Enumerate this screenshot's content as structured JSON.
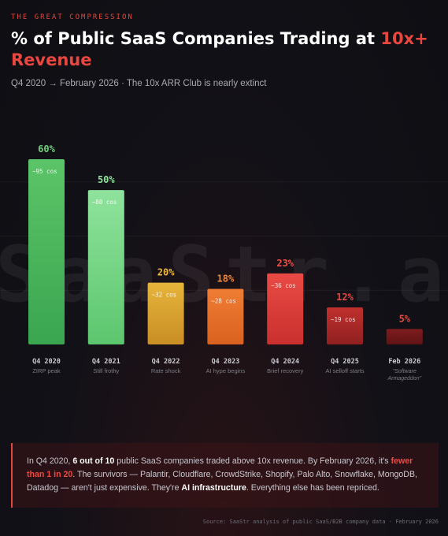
{
  "header": {
    "kicker": "THE GREAT COMPRESSION",
    "title_main": "% of Public SaaS Companies Trading at ",
    "title_accent": "10x+ Revenue",
    "subtitle": "Q4 2020 → February 2026 · The 10x ARR Club is nearly extinct"
  },
  "watermark": "SaaStr.ai",
  "chart_data": {
    "type": "bar",
    "title": "% of Public SaaS Companies Trading at 10x+ Revenue",
    "categories": [
      "Q4 2020",
      "Q4 2021",
      "Q4 2022",
      "Q4 2023",
      "Q4 2024",
      "Q4 2025",
      "Feb 2026"
    ],
    "sublabels": [
      "ZIRP peak",
      "Still frothy",
      "Rate shock",
      "AI hype begins",
      "Brief recovery",
      "AI selloff starts",
      "\"Software Armageddon\""
    ],
    "values": [
      60,
      50,
      20,
      18,
      23,
      12,
      5
    ],
    "value_labels": [
      "60%",
      "50%",
      "20%",
      "18%",
      "23%",
      "12%",
      "5%"
    ],
    "count_labels": [
      "~95 cos",
      "~80 cos",
      "~32 cos",
      "~28 cos",
      "~36 cos",
      "~19 cos",
      ""
    ],
    "ylim": [
      0,
      70
    ],
    "grid": true,
    "colors": {
      "bars_top": [
        "#5cc468",
        "#8fe39c",
        "#e6b43a",
        "#ef7d34",
        "#ea4a44",
        "#c0302e",
        "#7e1c1e"
      ],
      "bars_bottom": [
        "#3aa650",
        "#5cc66e",
        "#c98e25",
        "#d9611f",
        "#c9302e",
        "#8f2020",
        "#5f1416"
      ],
      "value_label": [
        "#6fd07a",
        "#8fe39c",
        "#f0b840",
        "#f28a3c",
        "#ee5048",
        "#e04a40",
        "#e04a40"
      ]
    }
  },
  "callout": {
    "t1": "In Q4 2020, ",
    "b1": "6 out of 10",
    "t2": " public SaaS companies traded above 10x revenue. By February 2026, it's ",
    "r1": "fewer than 1 in 20",
    "t3": ". The survivors — Palantir, Cloudflare, CrowdStrike, Shopify, Palo Alto, Snowflake, MongoDB, Datadog — aren't just expensive. They're ",
    "b2": "AI infrastructure",
    "t4": ". Everything else has been repriced."
  },
  "source": "Source: SaaStr analysis of public SaaS/B2B company data · February 2026"
}
